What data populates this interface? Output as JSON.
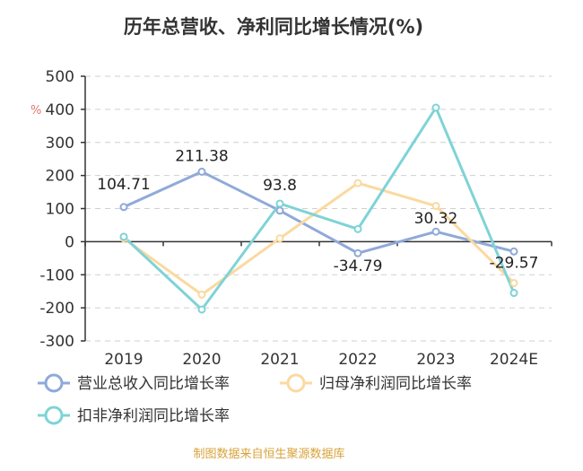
{
  "chart_data": {
    "type": "line",
    "title": "历年总营收、净利同比增长情况(%)",
    "unit_label": "%",
    "categories": [
      "2019",
      "2020",
      "2021",
      "2022",
      "2023",
      "2024E"
    ],
    "ylim": [
      -300,
      500
    ],
    "yticks": [
      500,
      400,
      300,
      200,
      100,
      0,
      -100,
      -200,
      -300
    ],
    "grid": true,
    "legend_position": "bottom",
    "series": [
      {
        "name": "营业总收入同比增长率",
        "color": "#8fa9d9",
        "values": [
          104.71,
          211.38,
          93.8,
          -34.79,
          30.32,
          -29.57
        ],
        "labels": [
          "104.71",
          "211.38",
          "93.8",
          "-34.79",
          "30.32",
          "-29.57"
        ]
      },
      {
        "name": "归母净利润同比增长率",
        "color": "#fbd9a0",
        "values": [
          10,
          -160,
          10,
          177,
          108,
          -125
        ]
      },
      {
        "name": "扣非净利润同比增长率",
        "color": "#7fd3d6",
        "values": [
          15,
          -205,
          115,
          38,
          405,
          -155
        ]
      }
    ],
    "source": "制图数据来自恒生聚源数据库"
  }
}
